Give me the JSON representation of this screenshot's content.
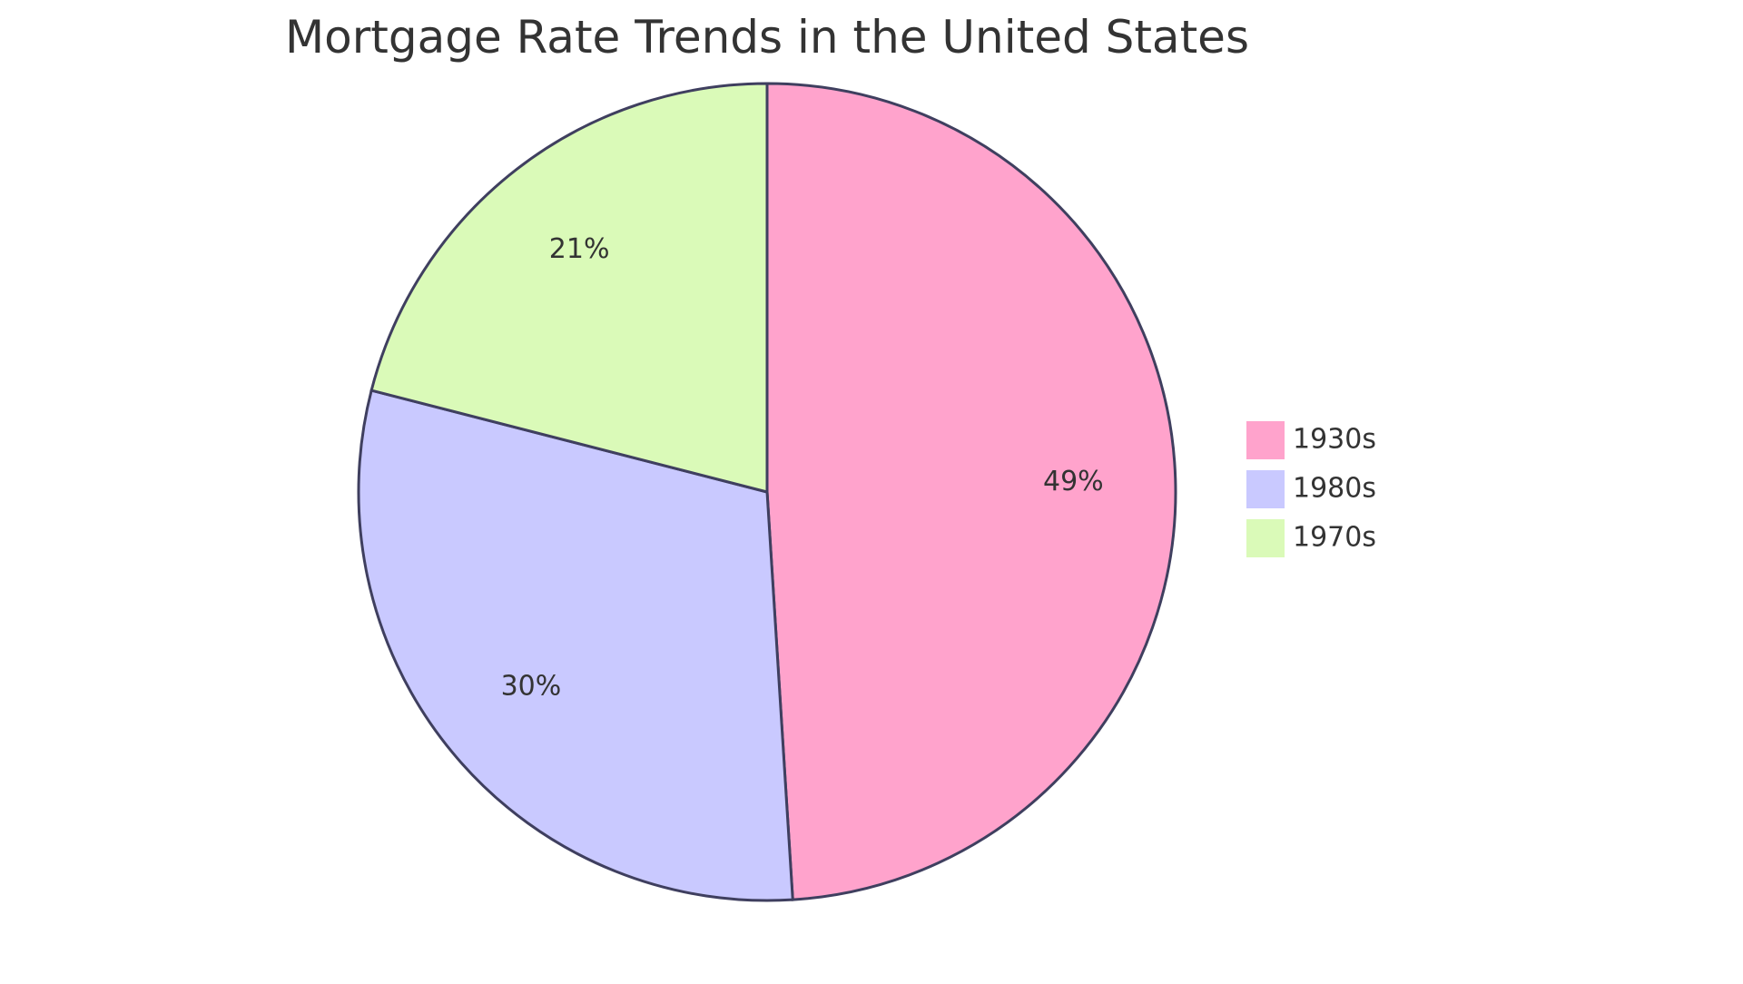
{
  "chart_data": {
    "type": "pie",
    "title": "Mortgage Rate Trends in the United States",
    "slices": [
      {
        "label": "1930s",
        "value": 49,
        "display": "49%",
        "color": "#FFA3CC"
      },
      {
        "label": "1980s",
        "value": 30,
        "display": "30%",
        "color": "#C9C9FF"
      },
      {
        "label": "1970s",
        "value": 21,
        "display": "21%",
        "color": "#DAFAB8"
      }
    ],
    "legend_position": "right",
    "stroke_color": "#3F3F5F"
  }
}
